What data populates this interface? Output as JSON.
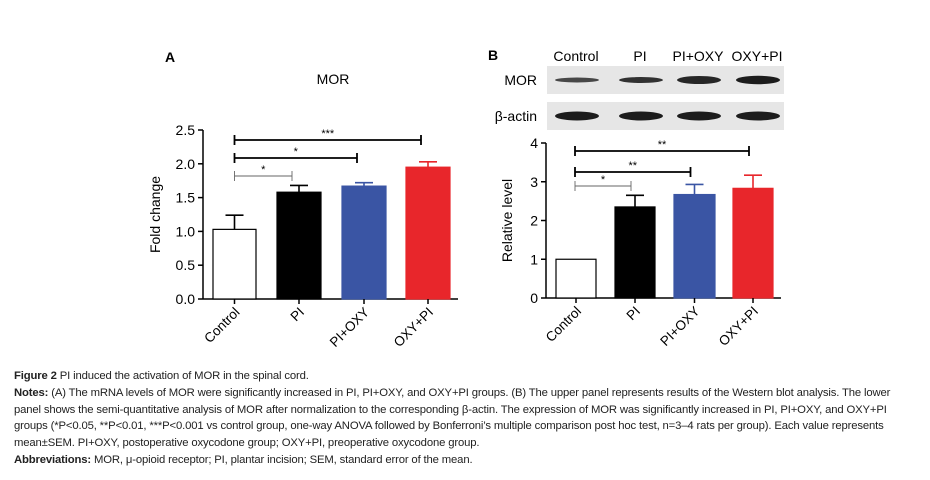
{
  "chart_data": [
    {
      "type": "bar",
      "panel_label": "A",
      "title": "MOR",
      "ylabel": "Fold change",
      "xlabel": "",
      "categories": [
        "Control",
        "PI",
        "PI+OXY",
        "OXY+PI"
      ],
      "values": [
        1.03,
        1.58,
        1.67,
        1.95
      ],
      "errors": [
        0.21,
        0.1,
        0.05,
        0.08
      ],
      "colors": [
        "#ffffff",
        "#000000",
        "#3a55a4",
        "#e8262b"
      ],
      "ylim": [
        0,
        2.5
      ],
      "yticks": [
        "0.0",
        "0.5",
        "1.0",
        "1.5",
        "2.0",
        "2.5"
      ],
      "yticks_values": [
        0,
        0.5,
        1.0,
        1.5,
        2.0,
        2.5
      ],
      "grid": false,
      "significance": [
        {
          "from": "Control",
          "to": "PI",
          "label": "*"
        },
        {
          "from": "Control",
          "to": "PI+OXY",
          "label": "*"
        },
        {
          "from": "Control",
          "to": "OXY+PI",
          "label": "***"
        }
      ]
    },
    {
      "type": "bar",
      "panel_label": "B",
      "title": "",
      "ylabel": "Relative level",
      "xlabel": "",
      "categories": [
        "Control",
        "PI",
        "PI+OXY",
        "OXY+PI"
      ],
      "values": [
        1.0,
        2.35,
        2.67,
        2.83
      ],
      "errors": [
        0,
        0.3,
        0.26,
        0.34
      ],
      "colors": [
        "#ffffff",
        "#000000",
        "#3a55a4",
        "#e8262b"
      ],
      "ylim": [
        0,
        4
      ],
      "yticks": [
        "0",
        "1",
        "2",
        "3",
        "4"
      ],
      "yticks_values": [
        0,
        1,
        2,
        3,
        4
      ],
      "grid": false,
      "significance": [
        {
          "from": "Control",
          "to": "PI",
          "label": "*"
        },
        {
          "from": "Control",
          "to": "PI+OXY",
          "label": "**"
        },
        {
          "from": "Control",
          "to": "OXY+PI",
          "label": "**"
        }
      ],
      "blot": {
        "lane_labels": [
          "Control",
          "PI",
          "PI+OXY",
          "OXY+PI"
        ],
        "rows": [
          "MOR",
          "β-actin"
        ]
      }
    }
  ],
  "caption": {
    "fig_label": "Figure 2",
    "fig_title": " PI induced the activation of MOR in the spinal cord.",
    "notes_label": "Notes:",
    "notes_text": " (A) The mRNA levels of MOR were significantly increased in PI, PI+OXY, and OXY+PI groups. (B) The upper panel represents results of the Western blot analysis. The lower panel shows the semi-quantitative analysis of MOR after normalization to the corresponding β-actin. The expression of MOR was significantly increased in PI, PI+OXY, and OXY+PI groups (*P<0.05, **P<0.01, ***P<0.001 vs control group, one-way ANOVA followed by Bonferroni’s multiple comparison post hoc test, n=3–4 rats per group). Each value represents mean±SEM. PI+OXY, postoperative oxycodone group; OXY+PI, preoperative oxycodone group.",
    "abbr_label": "Abbreviations:",
    "abbr_text": " MOR, μ-opioid receptor; PI, plantar incision; SEM, standard error of the mean."
  }
}
